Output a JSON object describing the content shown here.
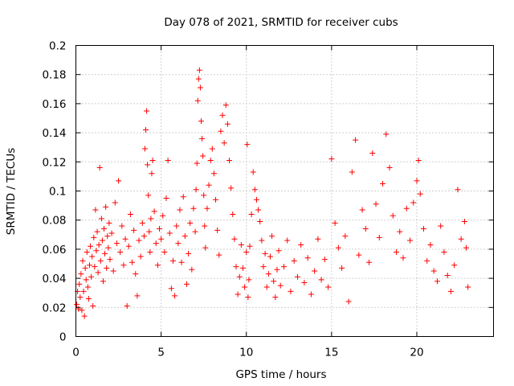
{
  "chart_data": {
    "type": "scatter",
    "title": "Day 078 of 2021, SRMTID for receiver cubs",
    "xlabel": "GPS time / hours",
    "ylabel": "SRMTID / TECUs",
    "xlim": [
      0,
      24.5
    ],
    "ylim": [
      0,
      0.2
    ],
    "x_ticks": [
      0,
      5,
      10,
      15,
      20
    ],
    "y_ticks": [
      0,
      0.02,
      0.04,
      0.06,
      0.08,
      0.1,
      0.12,
      0.14,
      0.16,
      0.18,
      0.2
    ],
    "grid": true,
    "marker": "+",
    "series": [
      {
        "name": "SRMTID",
        "color": "#ff0000",
        "points": [
          [
            0.05,
            0.022
          ],
          [
            0.1,
            0.031
          ],
          [
            0.15,
            0.019
          ],
          [
            0.2,
            0.036
          ],
          [
            0.25,
            0.027
          ],
          [
            0.3,
            0.043
          ],
          [
            0.35,
            0.018
          ],
          [
            0.4,
            0.052
          ],
          [
            0.45,
            0.031
          ],
          [
            0.5,
            0.014
          ],
          [
            0.55,
            0.047
          ],
          [
            0.6,
            0.039
          ],
          [
            0.65,
            0.058
          ],
          [
            0.7,
            0.034
          ],
          [
            0.75,
            0.026
          ],
          [
            0.8,
            0.049
          ],
          [
            0.85,
            0.062
          ],
          [
            0.9,
            0.041
          ],
          [
            0.95,
            0.055
          ],
          [
            1.0,
            0.021
          ],
          [
            1.05,
            0.068
          ],
          [
            1.1,
            0.048
          ],
          [
            1.15,
            0.087
          ],
          [
            1.2,
            0.059
          ],
          [
            1.25,
            0.072
          ],
          [
            1.3,
            0.044
          ],
          [
            1.35,
            0.063
          ],
          [
            1.4,
            0.116
          ],
          [
            1.45,
            0.052
          ],
          [
            1.5,
            0.081
          ],
          [
            1.55,
            0.066
          ],
          [
            1.6,
            0.038
          ],
          [
            1.65,
            0.074
          ],
          [
            1.7,
            0.057
          ],
          [
            1.75,
            0.089
          ],
          [
            1.8,
            0.047
          ],
          [
            1.85,
            0.069
          ],
          [
            1.9,
            0.061
          ],
          [
            1.95,
            0.078
          ],
          [
            2.0,
            0.053
          ],
          [
            2.1,
            0.071
          ],
          [
            2.2,
            0.045
          ],
          [
            2.3,
            0.092
          ],
          [
            2.4,
            0.064
          ],
          [
            2.5,
            0.107
          ],
          [
            2.6,
            0.058
          ],
          [
            2.7,
            0.076
          ],
          [
            2.8,
            0.049
          ],
          [
            2.9,
            0.067
          ],
          [
            3.0,
            0.021
          ],
          [
            3.1,
            0.062
          ],
          [
            3.2,
            0.084
          ],
          [
            3.3,
            0.051
          ],
          [
            3.4,
            0.073
          ],
          [
            3.5,
            0.043
          ],
          [
            3.6,
            0.028
          ],
          [
            3.7,
            0.066
          ],
          [
            3.8,
            0.055
          ],
          [
            3.9,
            0.078
          ],
          [
            4.0,
            0.069
          ],
          [
            4.05,
            0.129
          ],
          [
            4.1,
            0.142
          ],
          [
            4.15,
            0.155
          ],
          [
            4.2,
            0.118
          ],
          [
            4.25,
            0.097
          ],
          [
            4.3,
            0.072
          ],
          [
            4.35,
            0.058
          ],
          [
            4.4,
            0.081
          ],
          [
            4.45,
            0.112
          ],
          [
            4.5,
            0.121
          ],
          [
            4.6,
            0.086
          ],
          [
            4.7,
            0.064
          ],
          [
            4.8,
            0.049
          ],
          [
            4.9,
            0.074
          ],
          [
            5.0,
            0.067
          ],
          [
            5.1,
            0.083
          ],
          [
            5.2,
            0.058
          ],
          [
            5.3,
            0.095
          ],
          [
            5.4,
            0.121
          ],
          [
            5.5,
            0.071
          ],
          [
            5.6,
            0.033
          ],
          [
            5.7,
            0.052
          ],
          [
            5.8,
            0.028
          ],
          [
            5.9,
            0.076
          ],
          [
            6.0,
            0.064
          ],
          [
            6.1,
            0.087
          ],
          [
            6.2,
            0.051
          ],
          [
            6.3,
            0.096
          ],
          [
            6.4,
            0.069
          ],
          [
            6.5,
            0.036
          ],
          [
            6.6,
            0.057
          ],
          [
            6.7,
            0.078
          ],
          [
            6.8,
            0.046
          ],
          [
            6.9,
            0.088
          ],
          [
            7.0,
            0.072
          ],
          [
            7.05,
            0.101
          ],
          [
            7.1,
            0.119
          ],
          [
            7.15,
            0.162
          ],
          [
            7.2,
            0.177
          ],
          [
            7.25,
            0.183
          ],
          [
            7.3,
            0.171
          ],
          [
            7.35,
            0.148
          ],
          [
            7.4,
            0.136
          ],
          [
            7.45,
            0.124
          ],
          [
            7.5,
            0.097
          ],
          [
            7.55,
            0.076
          ],
          [
            7.6,
            0.061
          ],
          [
            7.7,
            0.088
          ],
          [
            7.8,
            0.104
          ],
          [
            7.9,
            0.121
          ],
          [
            8.0,
            0.129
          ],
          [
            8.1,
            0.112
          ],
          [
            8.2,
            0.094
          ],
          [
            8.3,
            0.073
          ],
          [
            8.4,
            0.056
          ],
          [
            8.5,
            0.141
          ],
          [
            8.6,
            0.152
          ],
          [
            8.7,
            0.133
          ],
          [
            8.8,
            0.159
          ],
          [
            8.9,
            0.146
          ],
          [
            9.0,
            0.121
          ],
          [
            9.1,
            0.102
          ],
          [
            9.2,
            0.084
          ],
          [
            9.3,
            0.067
          ],
          [
            9.4,
            0.048
          ],
          [
            9.5,
            0.029
          ],
          [
            9.6,
            0.041
          ],
          [
            9.7,
            0.063
          ],
          [
            9.8,
            0.047
          ],
          [
            9.9,
            0.034
          ],
          [
            10.0,
            0.058
          ],
          [
            10.05,
            0.132
          ],
          [
            10.1,
            0.027
          ],
          [
            10.15,
            0.039
          ],
          [
            10.2,
            0.062
          ],
          [
            10.3,
            0.084
          ],
          [
            10.4,
            0.113
          ],
          [
            10.5,
            0.101
          ],
          [
            10.6,
            0.094
          ],
          [
            10.7,
            0.087
          ],
          [
            10.8,
            0.079
          ],
          [
            10.9,
            0.066
          ],
          [
            11.0,
            0.048
          ],
          [
            11.1,
            0.057
          ],
          [
            11.2,
            0.034
          ],
          [
            11.3,
            0.043
          ],
          [
            11.4,
            0.055
          ],
          [
            11.5,
            0.069
          ],
          [
            11.6,
            0.038
          ],
          [
            11.7,
            0.027
          ],
          [
            11.8,
            0.046
          ],
          [
            11.9,
            0.059
          ],
          [
            12.0,
            0.035
          ],
          [
            12.2,
            0.048
          ],
          [
            12.4,
            0.066
          ],
          [
            12.6,
            0.031
          ],
          [
            12.8,
            0.052
          ],
          [
            13.0,
            0.041
          ],
          [
            13.2,
            0.063
          ],
          [
            13.4,
            0.037
          ],
          [
            13.6,
            0.054
          ],
          [
            13.8,
            0.029
          ],
          [
            14.0,
            0.045
          ],
          [
            14.2,
            0.067
          ],
          [
            14.4,
            0.039
          ],
          [
            14.6,
            0.053
          ],
          [
            14.8,
            0.034
          ],
          [
            15.0,
            0.122
          ],
          [
            15.2,
            0.078
          ],
          [
            15.4,
            0.061
          ],
          [
            15.6,
            0.047
          ],
          [
            15.8,
            0.069
          ],
          [
            16.0,
            0.024
          ],
          [
            16.2,
            0.113
          ],
          [
            16.4,
            0.135
          ],
          [
            16.6,
            0.056
          ],
          [
            16.8,
            0.087
          ],
          [
            17.0,
            0.074
          ],
          [
            17.2,
            0.051
          ],
          [
            17.4,
            0.126
          ],
          [
            17.6,
            0.091
          ],
          [
            17.8,
            0.068
          ],
          [
            18.0,
            0.105
          ],
          [
            18.2,
            0.139
          ],
          [
            18.4,
            0.116
          ],
          [
            18.6,
            0.083
          ],
          [
            18.8,
            0.058
          ],
          [
            19.0,
            0.072
          ],
          [
            19.2,
            0.054
          ],
          [
            19.4,
            0.088
          ],
          [
            19.6,
            0.066
          ],
          [
            19.8,
            0.092
          ],
          [
            20.0,
            0.107
          ],
          [
            20.1,
            0.121
          ],
          [
            20.2,
            0.098
          ],
          [
            20.4,
            0.074
          ],
          [
            20.6,
            0.052
          ],
          [
            20.8,
            0.063
          ],
          [
            21.0,
            0.045
          ],
          [
            21.2,
            0.038
          ],
          [
            21.4,
            0.076
          ],
          [
            21.6,
            0.058
          ],
          [
            21.8,
            0.042
          ],
          [
            22.0,
            0.031
          ],
          [
            22.2,
            0.049
          ],
          [
            22.4,
            0.101
          ],
          [
            22.6,
            0.067
          ],
          [
            22.8,
            0.079
          ],
          [
            22.9,
            0.061
          ],
          [
            23.0,
            0.034
          ]
        ]
      }
    ]
  }
}
